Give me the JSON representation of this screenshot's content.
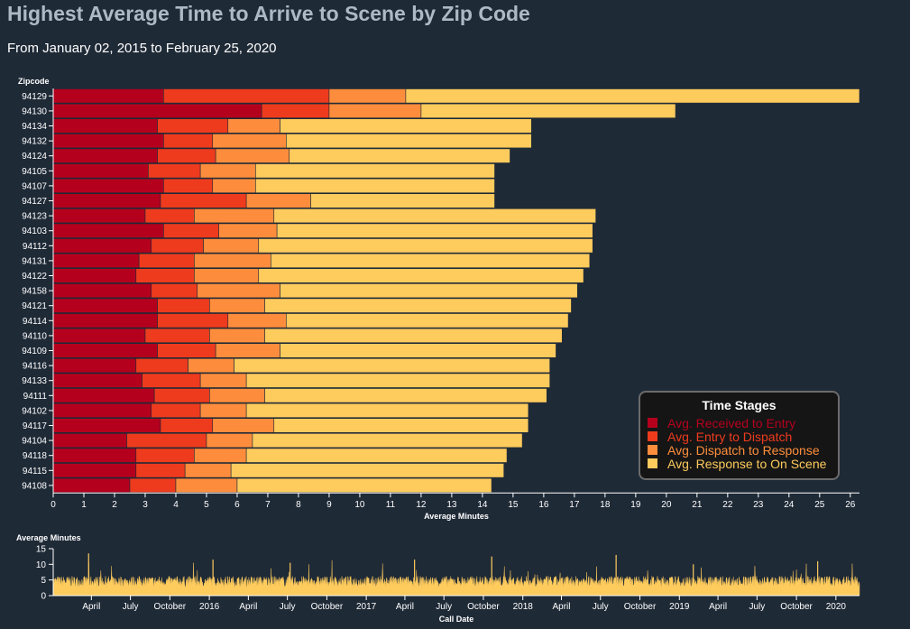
{
  "title": "Highest Average Time to Arrive to Scene by Zip Code",
  "subtitle": "From January 02, 2015 to February 25, 2020",
  "legend": {
    "title": "Time Stages",
    "items": [
      {
        "label": "Avg. Received to Entry",
        "color": "#b5001d"
      },
      {
        "label": "Avg. Entry to Dispatch",
        "color": "#ee3b1e"
      },
      {
        "label": "Avg. Dispatch to Response",
        "color": "#fd8d3c"
      },
      {
        "label": "Avg. Response to On Scene",
        "color": "#fecb5d"
      }
    ]
  },
  "chart_data": [
    {
      "type": "bar",
      "orientation": "horizontal",
      "stacked": true,
      "ylabel": "Zipcode",
      "xlabel": "Average Minutes",
      "xlim": [
        0,
        26.3
      ],
      "xticks": [
        0,
        1,
        2,
        3,
        4,
        5,
        6,
        7,
        8,
        9,
        10,
        11,
        12,
        13,
        14,
        15,
        16,
        17,
        18,
        19,
        20,
        21,
        22,
        23,
        24,
        25,
        26
      ],
      "categories": [
        "94129",
        "94130",
        "94134",
        "94132",
        "94124",
        "94105",
        "94107",
        "94127",
        "94123",
        "94103",
        "94112",
        "94131",
        "94122",
        "94158",
        "94121",
        "94114",
        "94110",
        "94109",
        "94116",
        "94133",
        "94111",
        "94102",
        "94117",
        "94104",
        "94118",
        "94115",
        "94108"
      ],
      "series": [
        {
          "name": "Avg. Received to Entry",
          "color": "#b5001d",
          "values": [
            3.6,
            6.8,
            3.4,
            3.6,
            3.4,
            3.1,
            3.6,
            3.5,
            3.0,
            3.6,
            3.2,
            2.8,
            2.7,
            3.2,
            3.4,
            3.4,
            3.0,
            3.4,
            2.7,
            2.9,
            3.3,
            3.2,
            3.5,
            2.4,
            2.7,
            2.7,
            2.5
          ]
        },
        {
          "name": "Avg. Entry to Dispatch",
          "color": "#ee3b1e",
          "values": [
            5.4,
            2.2,
            2.3,
            1.6,
            1.9,
            1.7,
            1.6,
            2.8,
            1.6,
            1.8,
            1.7,
            1.8,
            1.9,
            1.5,
            1.7,
            2.3,
            2.1,
            1.9,
            1.7,
            1.9,
            1.8,
            1.6,
            1.7,
            2.6,
            1.9,
            1.6,
            1.5
          ]
        },
        {
          "name": "Avg. Dispatch to Response",
          "color": "#fd8d3c",
          "values": [
            2.5,
            3.0,
            1.7,
            2.4,
            2.4,
            1.8,
            1.4,
            2.1,
            2.6,
            1.9,
            1.8,
            2.5,
            2.1,
            2.7,
            1.8,
            1.9,
            1.8,
            2.1,
            1.5,
            1.5,
            1.8,
            1.5,
            2.0,
            1.5,
            1.7,
            1.5,
            2.0
          ]
        },
        {
          "name": "Avg. Response to On Scene",
          "color": "#fecb5d",
          "values": [
            14.8,
            8.3,
            8.2,
            8.0,
            7.2,
            7.8,
            7.8,
            6.0,
            10.5,
            10.3,
            10.9,
            10.4,
            10.6,
            9.7,
            10.0,
            9.2,
            9.7,
            9.0,
            10.3,
            9.9,
            9.2,
            9.2,
            8.3,
            8.8,
            8.5,
            8.9,
            8.3
          ]
        }
      ]
    },
    {
      "type": "area",
      "ylabel": "Average Minutes",
      "xlabel": "Call Date",
      "ylim": [
        0,
        15
      ],
      "yticks": [
        0,
        5,
        10,
        15
      ],
      "x_range": [
        "2015-01-02",
        "2020-02-25"
      ],
      "color": "#fecb5d",
      "baseline_value": 4.5,
      "peak_values": [
        13.5,
        11.5,
        10.5,
        11.5,
        12.5,
        13,
        10,
        11
      ],
      "xticks": [
        {
          "label": "April",
          "date": "2015-04-01"
        },
        {
          "label": "July",
          "date": "2015-07-01"
        },
        {
          "label": "October",
          "date": "2015-10-01"
        },
        {
          "label": "2016",
          "date": "2016-01-01"
        },
        {
          "label": "April",
          "date": "2016-04-01"
        },
        {
          "label": "July",
          "date": "2016-07-01"
        },
        {
          "label": "October",
          "date": "2016-10-01"
        },
        {
          "label": "2017",
          "date": "2017-01-01"
        },
        {
          "label": "April",
          "date": "2017-04-01"
        },
        {
          "label": "July",
          "date": "2017-07-01"
        },
        {
          "label": "October",
          "date": "2017-10-01"
        },
        {
          "label": "2018",
          "date": "2018-01-01"
        },
        {
          "label": "April",
          "date": "2018-04-01"
        },
        {
          "label": "July",
          "date": "2018-07-01"
        },
        {
          "label": "October",
          "date": "2018-10-01"
        },
        {
          "label": "2019",
          "date": "2019-01-01"
        },
        {
          "label": "April",
          "date": "2019-04-01"
        },
        {
          "label": "July",
          "date": "2019-07-01"
        },
        {
          "label": "October",
          "date": "2019-10-01"
        },
        {
          "label": "2020",
          "date": "2020-01-01"
        }
      ]
    }
  ]
}
